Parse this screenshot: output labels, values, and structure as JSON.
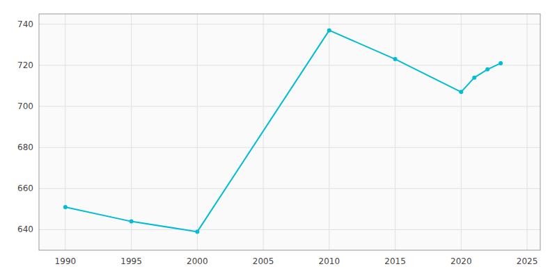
{
  "chart_data": {
    "type": "line",
    "x": [
      1990,
      1995,
      2000,
      2010,
      2015,
      2020,
      2021,
      2022,
      2023
    ],
    "values": [
      651,
      644,
      639,
      737,
      723,
      707,
      714,
      718,
      721
    ],
    "color": "#00bcd4",
    "marker": "circle",
    "xlim": [
      1988,
      2026
    ],
    "ylim": [
      630,
      745
    ],
    "xticks": [
      1990,
      1995,
      2000,
      2005,
      2010,
      2015,
      2020,
      2025
    ],
    "yticks": [
      640,
      660,
      680,
      700,
      720,
      740
    ],
    "grid": true
  }
}
